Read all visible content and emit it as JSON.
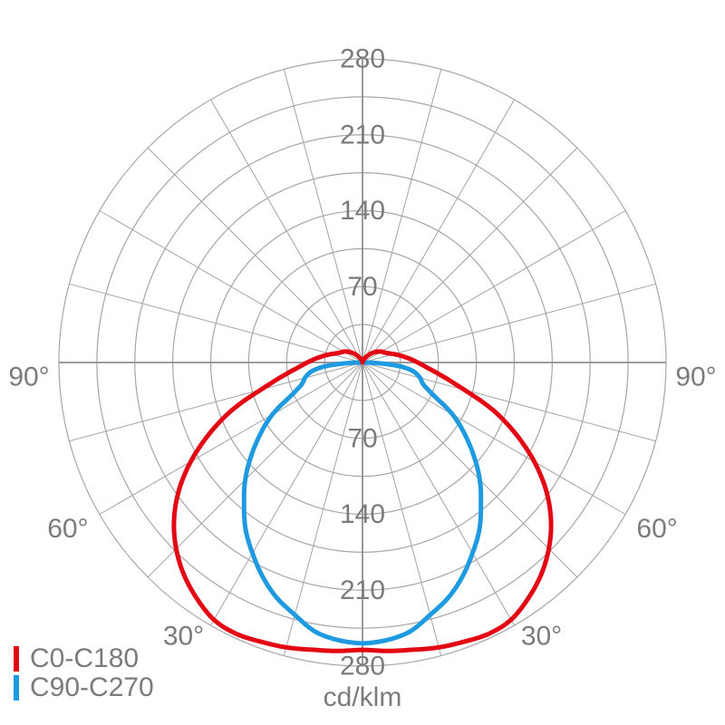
{
  "chart_data": {
    "type": "polar-photometric-distribution",
    "units_label": "cd/klm",
    "radial_axis": {
      "unit": "cd/klm",
      "max": 280,
      "grid_step": 35,
      "tick_labels": [
        "70",
        "140",
        "210",
        "280"
      ],
      "tick_values": [
        70,
        140,
        210,
        280
      ]
    },
    "angular_axis": {
      "grid_step_deg": 15,
      "zero_direction": "down",
      "labels": [
        {
          "text": "30°",
          "gamma": 30
        },
        {
          "text": "60°",
          "gamma": 60
        },
        {
          "text": "90°",
          "gamma": 90
        }
      ]
    },
    "series": [
      {
        "name": "C90-C270",
        "color": "#1e9be0",
        "symmetric": true,
        "points": [
          [
            0,
            259
          ],
          [
            5,
            257
          ],
          [
            10,
            252
          ],
          [
            15,
            241
          ],
          [
            20,
            231
          ],
          [
            25,
            218
          ],
          [
            30,
            203
          ],
          [
            35,
            188
          ],
          [
            40,
            170
          ],
          [
            45,
            153
          ],
          [
            50,
            134
          ],
          [
            55,
            115
          ],
          [
            60,
            96
          ],
          [
            65,
            73
          ],
          [
            70,
            60
          ],
          [
            75,
            55
          ],
          [
            80,
            48
          ],
          [
            84,
            36
          ],
          [
            87,
            18
          ],
          [
            90,
            2
          ]
        ]
      },
      {
        "name": "C0-C180",
        "color": "#e30613",
        "symmetric": true,
        "points": [
          [
            0,
            265
          ],
          [
            5,
            267
          ],
          [
            10,
            269
          ],
          [
            15,
            272
          ],
          [
            20,
            274
          ],
          [
            25,
            276
          ],
          [
            30,
            274
          ],
          [
            35,
            266
          ],
          [
            40,
            256
          ],
          [
            45,
            243
          ],
          [
            50,
            227
          ],
          [
            55,
            207
          ],
          [
            60,
            183
          ],
          [
            65,
            156
          ],
          [
            70,
            128
          ],
          [
            75,
            97
          ],
          [
            80,
            76
          ],
          [
            85,
            61
          ],
          [
            90,
            51
          ],
          [
            95,
            43
          ],
          [
            100,
            36
          ],
          [
            105,
            30
          ],
          [
            110,
            25
          ],
          [
            115,
            22
          ],
          [
            120,
            20
          ],
          [
            128,
            16
          ],
          [
            135,
            12
          ],
          [
            143,
            8
          ],
          [
            150,
            5
          ],
          [
            160,
            2.5
          ],
          [
            170,
            1
          ],
          [
            180,
            0
          ]
        ]
      }
    ],
    "legend": {
      "position": "bottom-left",
      "entries": [
        "C0-C180",
        "C90-C270"
      ]
    }
  },
  "colors": {
    "background": "#ffffff",
    "grid_circle": "#a6a6a6",
    "grid_spoke": "#a3a3a3",
    "axis": "#8f8f8f",
    "label_text": "#7b7b7b"
  }
}
